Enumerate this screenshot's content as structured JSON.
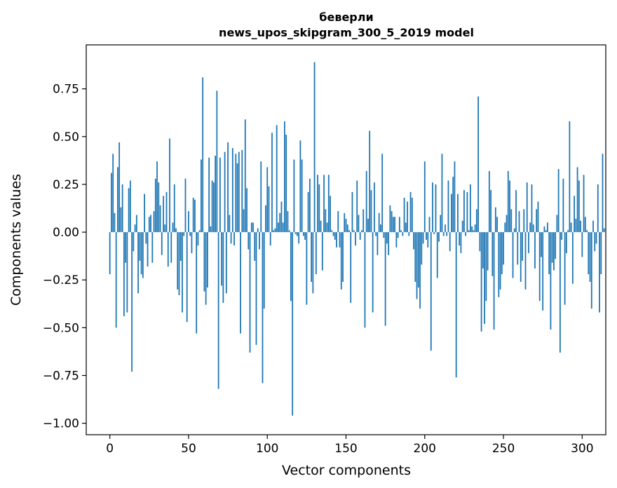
{
  "chart_data": {
    "type": "bar",
    "title": "беверли",
    "subtitle": "news_upos_skipgram_300_5_2019 model",
    "xlabel": "Vector components",
    "ylabel": "Components values",
    "xlim": [
      -15,
      315
    ],
    "ylim": [
      -1.06,
      0.98
    ],
    "xticks": [
      0,
      50,
      100,
      150,
      200,
      250,
      300
    ],
    "xtick_labels": [
      "0",
      "50",
      "100",
      "150",
      "200",
      "250",
      "300"
    ],
    "yticks": [
      -1.0,
      -0.75,
      -0.5,
      -0.25,
      0.0,
      0.25,
      0.5,
      0.75
    ],
    "ytick_labels": [
      "−1.00",
      "−0.75",
      "−0.50",
      "−0.25",
      "0.00",
      "0.25",
      "0.50",
      "0.75"
    ],
    "grid": false,
    "bar_color": "#1f77b4",
    "values": [
      -0.22,
      0.31,
      0.41,
      0.1,
      -0.5,
      0.34,
      0.47,
      0.13,
      0.25,
      -0.44,
      -0.16,
      -0.42,
      0.23,
      0.27,
      -0.73,
      -0.1,
      0.04,
      0.09,
      -0.32,
      -0.15,
      -0.22,
      -0.24,
      0.2,
      -0.06,
      -0.18,
      0.08,
      0.09,
      -0.16,
      0.11,
      0.28,
      0.37,
      0.26,
      0.14,
      -0.12,
      0.19,
      0.04,
      0.21,
      -0.18,
      0.49,
      -0.16,
      0.05,
      0.25,
      0.02,
      -0.3,
      -0.33,
      -0.15,
      -0.42,
      -0.02,
      0.28,
      -0.47,
      0.11,
      -0.02,
      -0.11,
      0.18,
      0.17,
      -0.53,
      -0.07,
      0.01,
      0.38,
      0.81,
      -0.31,
      -0.38,
      -0.29,
      0.39,
      0.03,
      0.27,
      0.26,
      0.4,
      0.74,
      -0.82,
      0.39,
      -0.28,
      -0.37,
      0.42,
      -0.32,
      0.47,
      0.09,
      -0.06,
      0.44,
      -0.07,
      0.41,
      0.36,
      0.42,
      -0.53,
      0.43,
      0.12,
      0.59,
      0.23,
      -0.09,
      -0.63,
      0.05,
      0.05,
      -0.15,
      -0.59,
      0.02,
      -0.09,
      0.37,
      -0.79,
      -0.4,
      0.14,
      0.34,
      0.24,
      -0.07,
      0.52,
      0.01,
      0.02,
      0.56,
      0.05,
      0.1,
      0.16,
      0.05,
      0.58,
      0.51,
      0.11,
      0.01,
      -0.36,
      -0.96,
      0.38,
      -0.01,
      -0.02,
      -0.06,
      0.48,
      0.38,
      -0.02,
      -0.04,
      -0.38,
      0.21,
      0.28,
      -0.26,
      -0.32,
      0.89,
      -0.22,
      0.3,
      0.25,
      0.06,
      -0.2,
      0.3,
      0.12,
      0.05,
      0.3,
      0.19,
      0.01,
      -0.02,
      -0.04,
      -0.08,
      0.11,
      -0.08,
      -0.3,
      -0.26,
      0.1,
      0.07,
      0.04,
      0.01,
      -0.37,
      0.21,
      0.01,
      -0.07,
      0.27,
      0.09,
      -0.04,
      0.01,
      0.12,
      -0.5,
      0.32,
      0.07,
      0.53,
      0.22,
      -0.42,
      0.26,
      -0.02,
      -0.12,
      0.1,
      0.04,
      0.41,
      -0.03,
      -0.49,
      -0.06,
      -0.12,
      0.14,
      0.11,
      0.08,
      0.08,
      -0.08,
      -0.03,
      0.08,
      0.01,
      -0.02,
      0.18,
      0.05,
      0.16,
      -0.02,
      0.21,
      0.18,
      -0.09,
      -0.26,
      -0.35,
      -0.29,
      -0.4,
      -0.17,
      -0.06,
      0.37,
      -0.04,
      -0.08,
      0.08,
      -0.62,
      0.26,
      -0.01,
      0.25,
      -0.24,
      -0.05,
      0.09,
      0.41,
      -0.02,
      0.04,
      -0.02,
      0.27,
      -0.1,
      0.2,
      0.29,
      0.37,
      -0.76,
      0.2,
      -0.07,
      -0.11,
      0.06,
      0.22,
      -0.02,
      0.21,
      0.01,
      0.25,
      0.03,
      0.01,
      0.04,
      0.12,
      0.71,
      -0.1,
      -0.52,
      -0.19,
      -0.48,
      -0.36,
      -0.2,
      0.32,
      0.22,
      -0.23,
      -0.51,
      0.13,
      0.08,
      -0.34,
      -0.3,
      -0.22,
      -0.17,
      0.05,
      0.09,
      0.32,
      0.27,
      0.12,
      -0.24,
      0.02,
      0.22,
      -0.17,
      0.11,
      -0.26,
      -0.15,
      0.12,
      -0.3,
      0.26,
      -0.11,
      0.05,
      0.25,
      0.04,
      -0.19,
      0.12,
      0.16,
      -0.36,
      -0.13,
      -0.41,
      0.03,
      0.01,
      0.05,
      -0.22,
      -0.51,
      -0.16,
      -0.2,
      -0.14,
      0.09,
      0.33,
      -0.63,
      -0.04,
      0.28,
      -0.38,
      -0.11,
      0.01,
      0.58,
      0.05,
      -0.27,
      0.19,
      0.07,
      0.34,
      0.27,
      0.06,
      -0.13,
      0.3,
      0.08,
      0.01,
      -0.22,
      -0.26,
      -0.4,
      0.06,
      -0.1,
      -0.06,
      0.25,
      -0.42,
      -0.22,
      0.41,
      0.02
    ]
  }
}
